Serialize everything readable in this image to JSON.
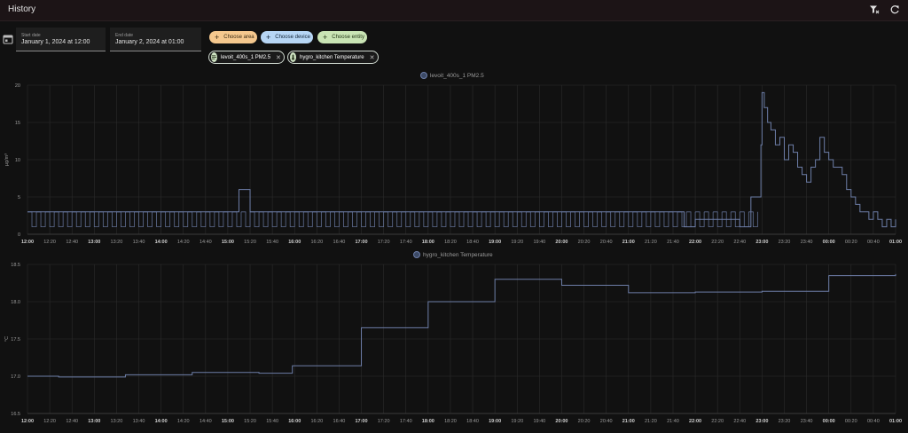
{
  "header": {
    "title": "History"
  },
  "toolbar": {
    "clear_icon": "filter-remove-icon",
    "refresh_icon": "refresh-icon"
  },
  "dates": {
    "start": {
      "label": "Start date",
      "value": "January 1, 2024 at 12:00"
    },
    "end": {
      "label": "End date",
      "value": "January 2, 2024 at 01:00"
    },
    "icon": "calendar-icon"
  },
  "pickers": {
    "area": {
      "label": "Choose area",
      "color": "#f5c88e"
    },
    "device": {
      "label": "Choose device",
      "color": "#b7d6f5"
    },
    "entity": {
      "label": "Choose entity",
      "color": "#c9e4b4"
    }
  },
  "chips": [
    {
      "label": "levoit_400s_1 PM2.5",
      "icon": "air-filter-icon"
    },
    {
      "label": "hygro_kitchen Temperature",
      "icon": "thermometer-icon"
    }
  ],
  "colors": {
    "series": "#6d7ea8",
    "grid": "#2c2c2c",
    "axis_text": "#9b9b9b"
  },
  "chart_data": [
    {
      "type": "line",
      "step": true,
      "series": [
        {
          "name": "levoit_400s_1 PM2.5",
          "color": "#6d7ea8"
        }
      ],
      "ylabel": "µg/m³",
      "ylim": [
        0,
        20
      ],
      "yticks": [
        "0",
        "5",
        "10",
        "15",
        "20"
      ],
      "xticks": [
        "12:00",
        "12:20",
        "12:40",
        "13:00",
        "13:20",
        "13:40",
        "14:00",
        "14:20",
        "14:40",
        "15:00",
        "15:20",
        "15:40",
        "16:00",
        "16:20",
        "16:40",
        "17:00",
        "17:20",
        "17:40",
        "18:00",
        "18:20",
        "18:40",
        "19:00",
        "19:20",
        "19:40",
        "20:00",
        "20:20",
        "20:40",
        "21:00",
        "21:20",
        "21:40",
        "22:00",
        "22:20",
        "22:40",
        "23:00",
        "23:20",
        "23:40",
        "00:00",
        "00:20",
        "00:40",
        "01:00"
      ],
      "x_minutes": [
        0,
        60,
        190,
        200,
        210,
        540,
        590,
        600,
        630,
        640,
        650,
        659,
        660,
        662,
        665,
        668,
        672,
        676,
        680,
        684,
        688,
        692,
        696,
        700,
        704,
        708,
        712,
        716,
        720,
        724,
        728,
        732,
        736,
        740,
        744,
        748,
        752,
        756,
        760,
        764,
        768,
        772,
        776,
        780
      ],
      "values": [
        3,
        3,
        6,
        3,
        3,
        3,
        1,
        2,
        2,
        1,
        5,
        12,
        19,
        17,
        15,
        14,
        12,
        13,
        10,
        12,
        11,
        9,
        8,
        7,
        9,
        10,
        13,
        11,
        10,
        9,
        9,
        8,
        6,
        5,
        4,
        3,
        3,
        2,
        3,
        2,
        1,
        2,
        1,
        2
      ],
      "grid": true,
      "legend": "top-center"
    },
    {
      "type": "line",
      "step": true,
      "series": [
        {
          "name": "hygro_kitchen Temperature",
          "color": "#6d7ea8"
        }
      ],
      "ylabel": "°C",
      "ylim": [
        16.5,
        18.5
      ],
      "yticks": [
        "16.5",
        "17.0",
        "17.5",
        "18.0",
        "18.5"
      ],
      "xticks": [
        "12:00",
        "12:20",
        "12:40",
        "13:00",
        "13:20",
        "13:40",
        "14:00",
        "14:20",
        "14:40",
        "15:00",
        "15:20",
        "15:40",
        "16:00",
        "16:20",
        "16:40",
        "17:00",
        "17:20",
        "17:40",
        "18:00",
        "18:20",
        "18:40",
        "19:00",
        "19:20",
        "19:40",
        "20:00",
        "20:20",
        "20:40",
        "21:00",
        "21:20",
        "21:40",
        "22:00",
        "22:20",
        "22:40",
        "23:00",
        "23:20",
        "23:40",
        "00:00",
        "00:20",
        "00:40",
        "01:00"
      ],
      "x_minutes": [
        0,
        28,
        88,
        148,
        208,
        238,
        300,
        360,
        420,
        480,
        540,
        600,
        660,
        720,
        780
      ],
      "values": [
        17.0,
        16.99,
        17.02,
        17.05,
        17.04,
        17.14,
        17.65,
        18.0,
        18.3,
        18.22,
        18.12,
        18.13,
        18.14,
        18.35,
        18.37
      ],
      "grid": true,
      "legend": "top-center"
    }
  ]
}
